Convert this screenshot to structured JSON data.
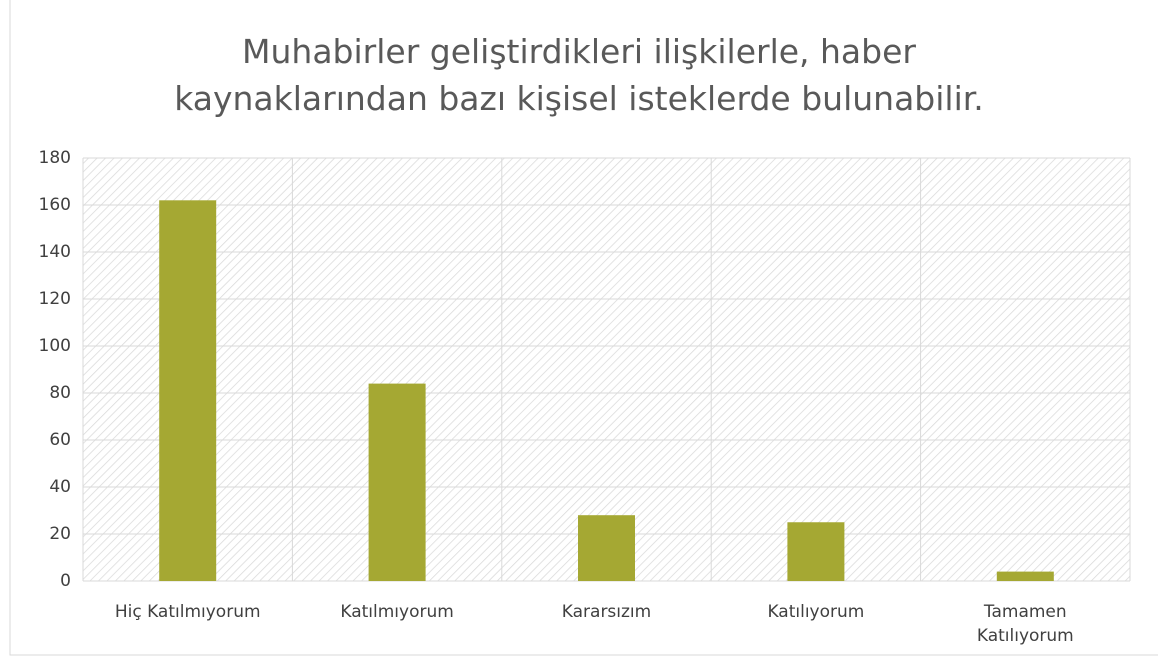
{
  "chart_data": {
    "type": "bar",
    "title": "Muhabirler geliştirdikleri ilişkilerle, haber kaynaklarından bazı kişisel isteklerde bulunabilir.",
    "categories": [
      "Hiç Katılmıyorum",
      "Katılmıyorum",
      "Kararsızım",
      "Katılıyorum",
      "Tamamen Katılıyorum"
    ],
    "values": [
      162,
      84,
      28,
      25,
      4
    ],
    "color": "#a5a833",
    "ylim": [
      0,
      180
    ],
    "yticks": [
      0,
      20,
      40,
      60,
      80,
      100,
      120,
      140,
      160,
      180
    ],
    "grid": true
  }
}
